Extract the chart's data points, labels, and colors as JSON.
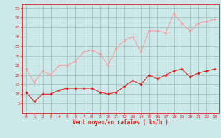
{
  "x": [
    0,
    1,
    2,
    3,
    4,
    5,
    6,
    7,
    8,
    9,
    10,
    11,
    12,
    13,
    14,
    15,
    16,
    17,
    18,
    19,
    20,
    21,
    22,
    23
  ],
  "wind_avg": [
    11,
    6,
    10,
    10,
    12,
    13,
    13,
    13,
    13,
    11,
    10,
    11,
    14,
    17,
    15,
    20,
    18,
    20,
    22,
    23,
    19,
    21,
    22,
    23
  ],
  "wind_gust": [
    23,
    16,
    22,
    20,
    25,
    25,
    27,
    32,
    33,
    31,
    25,
    34,
    38,
    40,
    32,
    43,
    43,
    42,
    52,
    47,
    43,
    47,
    48,
    49
  ],
  "xlabel": "Vent moyen/en rafales ( km/h )",
  "ylim": [
    0,
    57
  ],
  "xlim": [
    -0.5,
    23.5
  ],
  "yticks": [
    5,
    10,
    15,
    20,
    25,
    30,
    35,
    40,
    45,
    50,
    55
  ],
  "xticks": [
    0,
    1,
    2,
    3,
    4,
    5,
    6,
    7,
    8,
    9,
    10,
    11,
    12,
    13,
    14,
    15,
    16,
    17,
    18,
    19,
    20,
    21,
    22,
    23
  ],
  "line_avg_color": "#dd2222",
  "line_gust_color": "#f4a0a0",
  "bg_color": "#cce8e8",
  "grid_color": "#99bbbb",
  "tick_color": "#dd2222",
  "label_color": "#dd2222",
  "marker": "D",
  "marker_size": 1.8,
  "linewidth": 0.8,
  "tick_labelsize": 4.5,
  "xlabel_fontsize": 5.5
}
